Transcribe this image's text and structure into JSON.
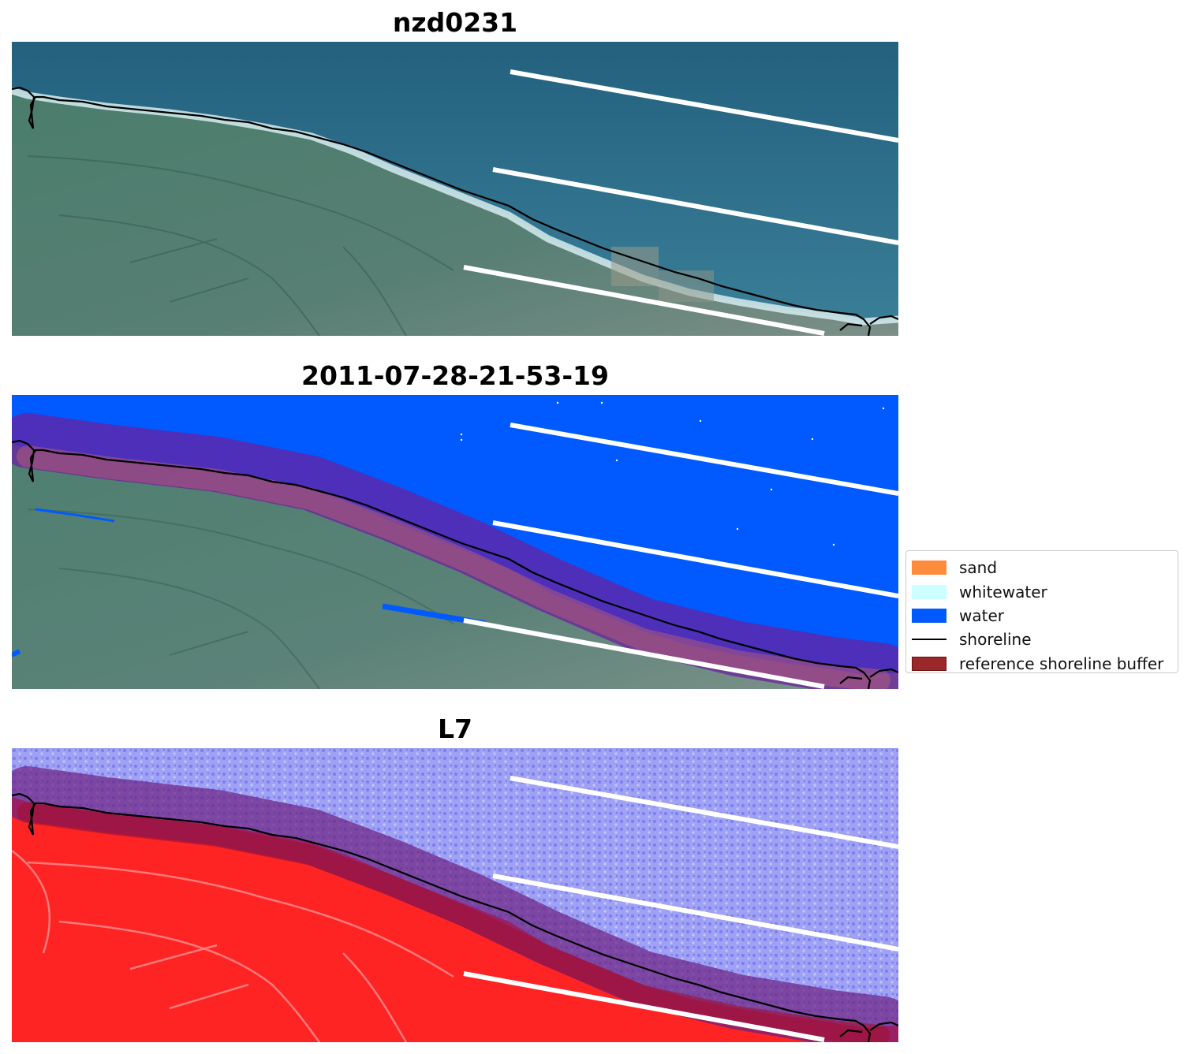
{
  "panels": [
    {
      "title": "nzd0231",
      "kind": "rgb"
    },
    {
      "title": "2011-07-28-21-53-19",
      "kind": "classified"
    },
    {
      "title": "L7",
      "kind": "index"
    }
  ],
  "legend": {
    "items": [
      {
        "label": "sand",
        "color": "#ff8c3c",
        "type": "patch"
      },
      {
        "label": "whitewater",
        "color": "#ccffff",
        "type": "patch"
      },
      {
        "label": "water",
        "color": "#005aff",
        "type": "patch"
      },
      {
        "label": "shoreline",
        "color": "#000000",
        "type": "line"
      },
      {
        "label": "reference shoreline buffer",
        "color": "#9a2828",
        "type": "patch"
      }
    ]
  },
  "colors": {
    "ocean_rgb": "#2e6f8a",
    "land_rgb": "#4f7a6a",
    "water_class": "#005aff",
    "buffer": "#9a2828",
    "index_water": "#9a9cf2",
    "index_land": "#ff2020",
    "transect": "#ffffff",
    "shoreline": "#000000"
  }
}
